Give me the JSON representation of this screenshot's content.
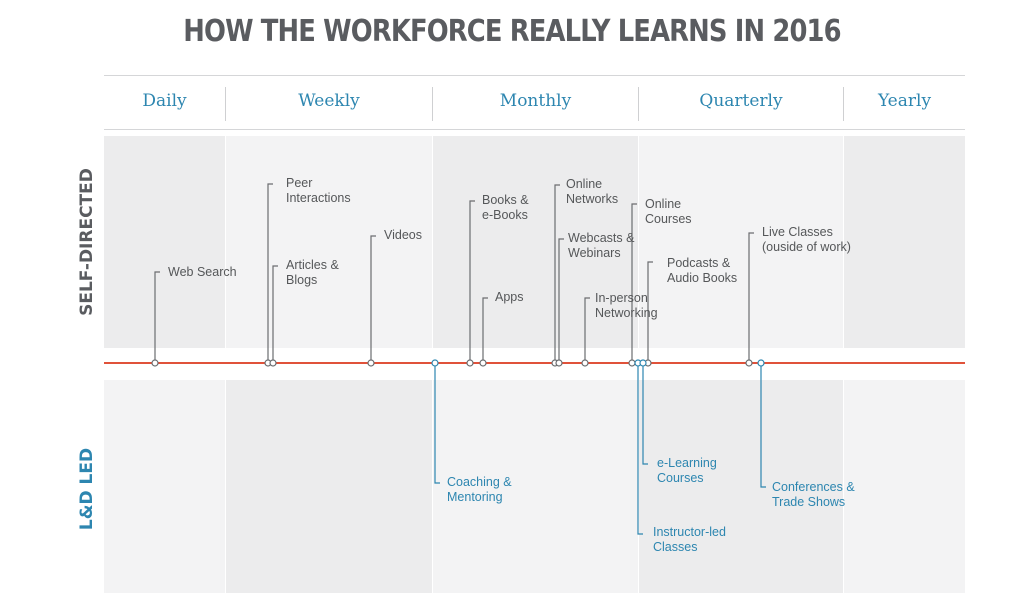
{
  "title": "HOW THE WORKFORCE REALLY LEARNS IN 2016",
  "columns": [
    "Daily",
    "Weekly",
    "Monthly",
    "Quarterly",
    "Yearly"
  ],
  "rows": {
    "self_directed": "SELF-DIRECTED",
    "ld_led": "L&D LED"
  },
  "colors": {
    "title": "#5a5c60",
    "header_text": "#2d86b0",
    "self_directed_text": "#555759",
    "ld_led_text": "#2d86b0",
    "timeline": "#e0523a",
    "band_light": "#f3f3f4",
    "band_dark": "#ececed"
  },
  "self_directed_items": [
    {
      "label": "Web Search"
    },
    {
      "label": "Peer\nInteractions"
    },
    {
      "label": "Articles &\nBlogs"
    },
    {
      "label": "Videos"
    },
    {
      "label": "Books &\ne-Books"
    },
    {
      "label": "Apps"
    },
    {
      "label": "Online\nNetworks"
    },
    {
      "label": "Webcasts &\nWebinars"
    },
    {
      "label": "In-person\nNetworking"
    },
    {
      "label": "Online\nCourses"
    },
    {
      "label": "Podcasts &\nAudio Books"
    },
    {
      "label": "Live Classes\n(ouside of work)"
    }
  ],
  "ld_led_items": [
    {
      "label": "Coaching &\nMentoring"
    },
    {
      "label": "e-Learning\nCourses"
    },
    {
      "label": "Instructor-led\nClasses"
    },
    {
      "label": "Conferences &\nTrade Shows"
    }
  ]
}
